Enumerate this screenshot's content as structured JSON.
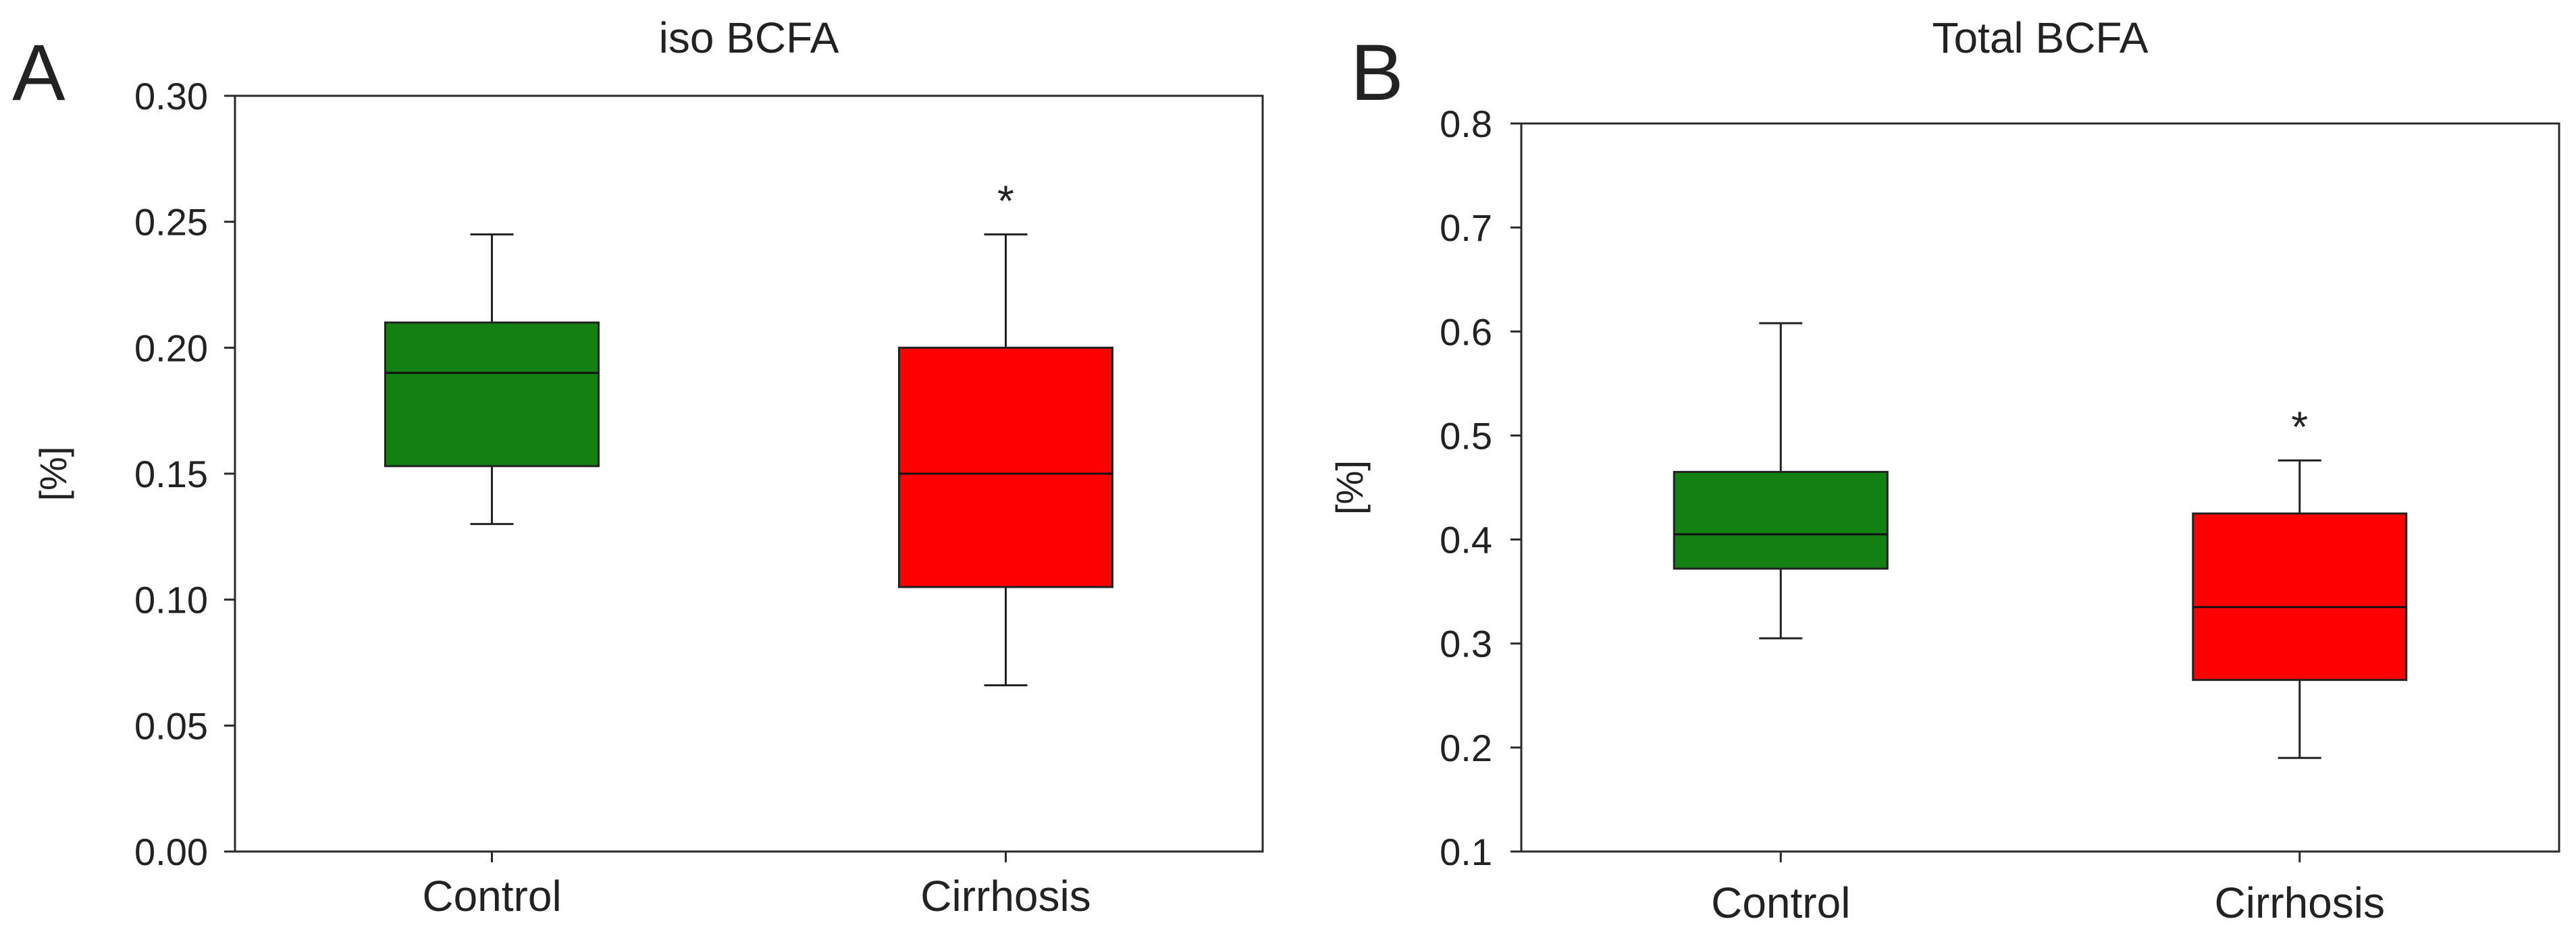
{
  "chart_data": [
    {
      "type": "box",
      "panel": "A",
      "title": "iso BCFA",
      "ylabel": "[%]",
      "xlabel": "",
      "ylim": [
        0,
        0.3
      ],
      "yticks": [
        0.0,
        0.05,
        0.1,
        0.15,
        0.2,
        0.25,
        0.3
      ],
      "ytick_labels": [
        "0.00",
        "0.05",
        "0.10",
        "0.15",
        "0.20",
        "0.25",
        "0.30"
      ],
      "categories": [
        "Control",
        "Cirrhosis"
      ],
      "boxes": [
        {
          "category": "Control",
          "color": "#138013",
          "whisker_low": 0.13,
          "q1": 0.153,
          "median": 0.19,
          "q3": 0.21,
          "whisker_high": 0.245,
          "annotation": ""
        },
        {
          "category": "Cirrhosis",
          "color": "#ff0000",
          "whisker_low": 0.066,
          "q1": 0.105,
          "median": 0.15,
          "q3": 0.2,
          "whisker_high": 0.245,
          "annotation": "*"
        }
      ]
    },
    {
      "type": "box",
      "panel": "B",
      "title": "Total BCFA",
      "ylabel": "[%]",
      "xlabel": "",
      "ylim": [
        0.1,
        0.8
      ],
      "yticks": [
        0.1,
        0.2,
        0.3,
        0.4,
        0.5,
        0.6,
        0.7,
        0.8
      ],
      "ytick_labels": [
        "0.1",
        "0.2",
        "0.3",
        "0.4",
        "0.5",
        "0.6",
        "0.7",
        "0.8"
      ],
      "categories": [
        "Control",
        "Cirrhosis"
      ],
      "boxes": [
        {
          "category": "Control",
          "color": "#138013",
          "whisker_low": 0.305,
          "q1": 0.372,
          "median": 0.405,
          "q3": 0.465,
          "whisker_high": 0.608,
          "annotation": ""
        },
        {
          "category": "Cirrhosis",
          "color": "#ff0000",
          "whisker_low": 0.19,
          "q1": 0.265,
          "median": 0.335,
          "q3": 0.425,
          "whisker_high": 0.476,
          "annotation": "*"
        }
      ]
    }
  ]
}
